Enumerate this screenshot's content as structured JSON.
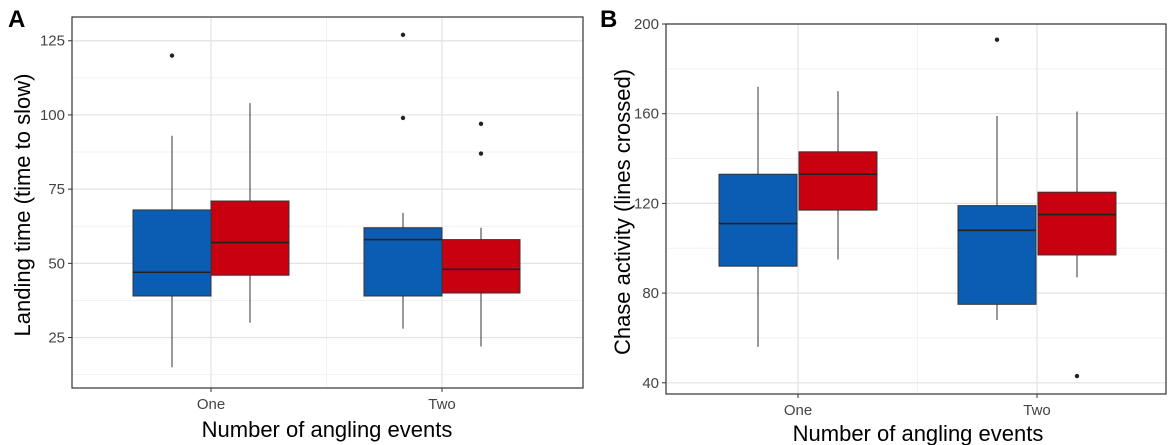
{
  "colors": {
    "blue": "#0b5db3",
    "red": "#c8000f",
    "grid_major": "#e3e3e3",
    "grid_minor": "#f2f2f2",
    "frame": "#333333"
  },
  "chart_data": [
    {
      "type": "boxplot",
      "panel_label": "A",
      "xlabel": "Number of angling events",
      "ylabel": "Landing time (time to slow)",
      "categories": [
        "One",
        "Two"
      ],
      "ylim": [
        8,
        133
      ],
      "yticks": [
        25,
        50,
        75,
        100,
        125
      ],
      "grid": true,
      "groups": [
        {
          "category": "One",
          "boxes": [
            {
              "color": "blue",
              "min": 15,
              "q1": 39,
              "median": 47,
              "q3": 68,
              "max": 93,
              "outliers": [
                120
              ]
            },
            {
              "color": "red",
              "min": 30,
              "q1": 46,
              "median": 57,
              "q3": 71,
              "max": 104,
              "outliers": []
            }
          ]
        },
        {
          "category": "Two",
          "boxes": [
            {
              "color": "blue",
              "min": 28,
              "q1": 39,
              "median": 58,
              "q3": 62,
              "max": 67,
              "outliers": [
                99,
                127
              ]
            },
            {
              "color": "red",
              "min": 22,
              "q1": 40,
              "median": 48,
              "q3": 58,
              "max": 62,
              "outliers": [
                87,
                97
              ]
            }
          ]
        }
      ]
    },
    {
      "type": "boxplot",
      "panel_label": "B",
      "xlabel": "Number of angling events",
      "ylabel": "Chase activity (lines crossed)",
      "categories": [
        "One",
        "Two"
      ],
      "ylim": [
        35,
        200
      ],
      "yticks": [
        40,
        80,
        120,
        160,
        200
      ],
      "grid": true,
      "groups": [
        {
          "category": "One",
          "boxes": [
            {
              "color": "blue",
              "min": 56,
              "q1": 92,
              "median": 111,
              "q3": 133,
              "max": 172,
              "outliers": []
            },
            {
              "color": "red",
              "min": 95,
              "q1": 117,
              "median": 133,
              "q3": 143,
              "max": 170,
              "outliers": []
            }
          ]
        },
        {
          "category": "Two",
          "boxes": [
            {
              "color": "blue",
              "min": 68,
              "q1": 75,
              "median": 108,
              "q3": 119,
              "max": 159,
              "outliers": [
                193
              ]
            },
            {
              "color": "red",
              "min": 87,
              "q1": 97,
              "median": 115,
              "q3": 125,
              "max": 161,
              "outliers": [
                43
              ]
            }
          ]
        }
      ]
    }
  ]
}
